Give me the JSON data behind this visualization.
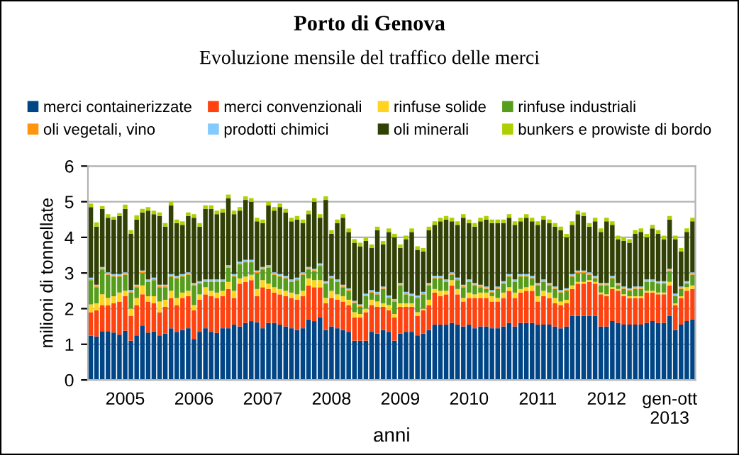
{
  "chart_data": {
    "type": "bar",
    "stacked": true,
    "title": "Porto di Genova",
    "subtitle": "Evoluzione mensile del traffico delle merci",
    "xlabel": "anni",
    "ylabel": "milioni di tonnellate",
    "categories": [
      null,
      null,
      null,
      null,
      null,
      null,
      "2005",
      null,
      null,
      null,
      null,
      null,
      null,
      null,
      null,
      null,
      null,
      null,
      "2006",
      null,
      null,
      null,
      null,
      null,
      null,
      null,
      null,
      null,
      null,
      null,
      "2007",
      null,
      null,
      null,
      null,
      null,
      null,
      null,
      null,
      null,
      null,
      null,
      "2008",
      null,
      null,
      null,
      null,
      null,
      null,
      null,
      null,
      null,
      null,
      null,
      "2009",
      null,
      null,
      null,
      null,
      null,
      null,
      null,
      null,
      null,
      null,
      null,
      "2010",
      null,
      null,
      null,
      null,
      null,
      null,
      null,
      null,
      null,
      null,
      null,
      "2011",
      null,
      null,
      null,
      null,
      null,
      null,
      null,
      null,
      null,
      null,
      null,
      "2012",
      null,
      null,
      null,
      null,
      null,
      null,
      null,
      null,
      null,
      null,
      "gen-ott\n2013",
      null,
      null,
      null,
      null
    ],
    "ylim": [
      0,
      6
    ],
    "yticks": [
      0,
      1,
      2,
      3,
      4,
      5,
      6
    ],
    "grid": "y",
    "legend": "top",
    "series": [
      {
        "name": "merci containerizzate",
        "color": "#004586",
        "values": [
          1.24,
          1.22,
          1.37,
          1.37,
          1.33,
          1.27,
          1.38,
          1.1,
          1.25,
          1.53,
          1.33,
          1.36,
          1.25,
          1.3,
          1.45,
          1.35,
          1.4,
          1.45,
          1.15,
          1.35,
          1.45,
          1.35,
          1.32,
          1.45,
          1.45,
          1.55,
          1.5,
          1.6,
          1.65,
          1.62,
          1.45,
          1.6,
          1.6,
          1.55,
          1.5,
          1.45,
          1.4,
          1.45,
          1.7,
          1.65,
          1.75,
          1.4,
          1.5,
          1.45,
          1.4,
          1.35,
          1.1,
          1.1,
          1.1,
          1.35,
          1.3,
          1.4,
          1.35,
          1.1,
          1.3,
          1.35,
          1.35,
          1.25,
          1.3,
          1.4,
          1.55,
          1.55,
          1.55,
          1.6,
          1.55,
          1.5,
          1.55,
          1.45,
          1.5,
          1.5,
          1.45,
          1.45,
          1.5,
          1.6,
          1.5,
          1.6,
          1.6,
          1.6,
          1.55,
          1.55,
          1.55,
          1.5,
          1.45,
          1.5,
          1.8,
          1.8,
          1.8,
          1.8,
          1.8,
          1.5,
          1.5,
          1.65,
          1.6,
          1.55,
          1.55,
          1.55,
          1.55,
          1.6,
          1.65,
          1.6,
          1.6,
          1.8,
          1.4,
          1.55,
          1.65,
          1.7
        ]
      },
      {
        "name": "merci convenzionali",
        "color": "#ff420e",
        "values": [
          0.66,
          0.73,
          0.73,
          0.73,
          0.82,
          0.93,
          0.97,
          0.7,
          0.85,
          0.87,
          0.87,
          0.79,
          0.65,
          0.75,
          0.85,
          0.75,
          0.9,
          0.9,
          0.8,
          0.9,
          0.95,
          1.0,
          0.98,
          0.9,
          1.1,
          0.75,
          1.2,
          1.15,
          1.15,
          0.73,
          1.15,
          0.95,
          0.85,
          0.85,
          0.85,
          0.85,
          0.85,
          0.9,
          0.95,
          0.95,
          0.85,
          0.75,
          0.8,
          0.8,
          0.8,
          0.75,
          0.65,
          0.65,
          0.8,
          0.75,
          0.75,
          0.65,
          0.6,
          0.65,
          0.75,
          0.7,
          0.7,
          0.55,
          0.65,
          0.7,
          0.9,
          0.8,
          0.85,
          1.05,
          0.85,
          0.7,
          0.75,
          0.85,
          0.8,
          0.8,
          0.75,
          0.75,
          0.8,
          0.9,
          0.8,
          0.85,
          0.9,
          0.9,
          0.65,
          0.8,
          0.75,
          0.65,
          0.65,
          0.65,
          0.75,
          0.9,
          0.9,
          0.95,
          0.9,
          0.9,
          0.85,
          0.9,
          0.9,
          0.8,
          0.75,
          0.75,
          0.75,
          0.85,
          0.8,
          0.8,
          0.8,
          0.85,
          0.7,
          0.75,
          0.85,
          0.85
        ]
      },
      {
        "name": "rinfuse solide",
        "color": "#ffd320",
        "values": [
          0.22,
          0.2,
          0.3,
          0.2,
          0.2,
          0.25,
          0.15,
          0.2,
          0.2,
          0.25,
          0.15,
          0.2,
          0.3,
          0.2,
          0.2,
          0.2,
          0.15,
          0.15,
          0.15,
          0.15,
          0.2,
          0.15,
          0.15,
          0.15,
          0.2,
          0.2,
          0.15,
          0.15,
          0.15,
          0.2,
          0.2,
          0.15,
          0.15,
          0.15,
          0.15,
          0.15,
          0.15,
          0.15,
          0.2,
          0.2,
          0.2,
          0.15,
          0.2,
          0.15,
          0.15,
          0.15,
          0.15,
          0.1,
          0.1,
          0.15,
          0.15,
          0.1,
          0.15,
          0.1,
          0.1,
          0.1,
          0.1,
          0.1,
          0.05,
          0.15,
          0.1,
          0.15,
          0.1,
          0.15,
          0.15,
          0.1,
          0.15,
          0.1,
          0.15,
          0.15,
          0.15,
          0.1,
          0.15,
          0.1,
          0.15,
          0.1,
          0.1,
          0.15,
          0.15,
          0.15,
          0.15,
          0.15,
          0.1,
          0.1,
          0.1,
          0.05,
          0.05,
          0.05,
          0.05,
          0.05,
          0.05,
          0.05,
          0.05,
          0.05,
          0.05,
          0.05,
          0.05,
          0.05,
          0.05,
          0.05,
          0.05,
          0.1,
          0.05,
          0.05,
          0.1,
          0.1
        ]
      },
      {
        "name": "rinfuse industriali",
        "color": "#579d1c",
        "values": [
          0.68,
          0.45,
          0.7,
          0.65,
          0.55,
          0.45,
          0.45,
          0.45,
          0.3,
          0.35,
          0.4,
          0.45,
          0.4,
          0.35,
          0.4,
          0.55,
          0.45,
          0.45,
          0.55,
          0.3,
          0.15,
          0.25,
          0.3,
          0.25,
          0.4,
          0.4,
          0.4,
          0.4,
          0.35,
          0.45,
          0.3,
          0.45,
          0.35,
          0.35,
          0.35,
          0.3,
          0.4,
          0.45,
          0.25,
          0.25,
          0.4,
          0.4,
          0.35,
          0.35,
          0.25,
          0.25,
          0.25,
          0.2,
          0.35,
          0.2,
          0.2,
          0.4,
          0.2,
          0.35,
          0.5,
          0.25,
          0.2,
          0.4,
          0.4,
          0.4,
          0.3,
          0.35,
          0.25,
          0.15,
          0.25,
          0.3,
          0.3,
          0.25,
          0.15,
          0.1,
          0.1,
          0.25,
          0.25,
          0.3,
          0.3,
          0.35,
          0.3,
          0.2,
          0.3,
          0.25,
          0.2,
          0.25,
          0.25,
          0.25,
          0.25,
          0.25,
          0.25,
          0.15,
          0.1,
          0.2,
          0.25,
          0.25,
          0.1,
          0.15,
          0.15,
          0.2,
          0.2,
          0.25,
          0.25,
          0.25,
          0.25,
          0.3,
          0.2,
          0.2,
          0.1,
          0.3
        ]
      },
      {
        "name": "oli vegetali, vino",
        "color": "#ff950e",
        "values": [
          0.03,
          0.03,
          0.03,
          0.03,
          0.03,
          0.03,
          0.03,
          0.03,
          0.03,
          0.03,
          0.03,
          0.03,
          0.03,
          0.03,
          0.03,
          0.03,
          0.03,
          0.03,
          0.03,
          0.03,
          0.03,
          0.03,
          0.03,
          0.03,
          0.03,
          0.03,
          0.03,
          0.03,
          0.03,
          0.03,
          0.03,
          0.03,
          0.03,
          0.03,
          0.03,
          0.03,
          0.03,
          0.03,
          0.03,
          0.03,
          0.03,
          0.03,
          0.03,
          0.03,
          0.03,
          0.03,
          0.03,
          0.03,
          0.03,
          0.03,
          0.03,
          0.03,
          0.03,
          0.03,
          0.03,
          0.03,
          0.03,
          0.03,
          0.03,
          0.03,
          0.03,
          0.03,
          0.03,
          0.03,
          0.03,
          0.03,
          0.03,
          0.03,
          0.03,
          0.03,
          0.03,
          0.03,
          0.03,
          0.03,
          0.03,
          0.03,
          0.03,
          0.03,
          0.03,
          0.03,
          0.03,
          0.03,
          0.03,
          0.03,
          0.03,
          0.03,
          0.03,
          0.03,
          0.03,
          0.03,
          0.03,
          0.03,
          0.03,
          0.03,
          0.03,
          0.03,
          0.03,
          0.03,
          0.03,
          0.03,
          0.03,
          0.03,
          0.03,
          0.03,
          0.03,
          0.03
        ]
      },
      {
        "name": "prodotti chimici",
        "color": "#83caff",
        "values": [
          0.04,
          0.04,
          0.04,
          0.04,
          0.04,
          0.04,
          0.04,
          0.04,
          0.04,
          0.04,
          0.04,
          0.04,
          0.04,
          0.04,
          0.04,
          0.04,
          0.04,
          0.04,
          0.04,
          0.04,
          0.04,
          0.04,
          0.04,
          0.04,
          0.04,
          0.04,
          0.04,
          0.04,
          0.04,
          0.04,
          0.04,
          0.04,
          0.04,
          0.04,
          0.04,
          0.04,
          0.04,
          0.04,
          0.04,
          0.04,
          0.04,
          0.04,
          0.04,
          0.04,
          0.04,
          0.04,
          0.04,
          0.04,
          0.04,
          0.04,
          0.04,
          0.04,
          0.04,
          0.04,
          0.04,
          0.04,
          0.04,
          0.04,
          0.04,
          0.04,
          0.04,
          0.04,
          0.04,
          0.04,
          0.04,
          0.04,
          0.04,
          0.04,
          0.04,
          0.04,
          0.04,
          0.04,
          0.04,
          0.04,
          0.04,
          0.04,
          0.04,
          0.04,
          0.04,
          0.04,
          0.04,
          0.04,
          0.04,
          0.04,
          0.04,
          0.04,
          0.04,
          0.04,
          0.04,
          0.04,
          0.04,
          0.04,
          0.04,
          0.04,
          0.04,
          0.04,
          0.04,
          0.04,
          0.04,
          0.04,
          0.04,
          0.04,
          0.04,
          0.04,
          0.04,
          0.04
        ]
      },
      {
        "name": "oli minerali",
        "color": "#314004",
        "values": [
          1.98,
          1.63,
          1.63,
          1.53,
          1.53,
          1.63,
          1.78,
          1.58,
          1.83,
          1.63,
          1.93,
          1.78,
          1.93,
          1.63,
          1.93,
          1.48,
          1.38,
          1.58,
          1.83,
          1.53,
          1.98,
          1.98,
          1.83,
          1.88,
          1.88,
          1.68,
          1.43,
          1.68,
          1.63,
          1.38,
          1.23,
          1.68,
          1.73,
          1.88,
          1.78,
          1.63,
          1.63,
          1.38,
          1.48,
          1.88,
          1.28,
          2.28,
          1.18,
          1.58,
          1.88,
          1.58,
          1.63,
          1.63,
          1.48,
          1.18,
          1.73,
          1.18,
          1.78,
          1.73,
          0.98,
          1.48,
          1.73,
          1.28,
          1.13,
          1.48,
          1.43,
          1.53,
          1.68,
          1.43,
          1.48,
          1.88,
          1.58,
          1.58,
          1.78,
          1.88,
          1.88,
          1.78,
          1.63,
          1.58,
          1.53,
          1.48,
          1.58,
          1.53,
          1.63,
          1.68,
          1.68,
          1.68,
          1.68,
          1.43,
          1.38,
          1.58,
          1.53,
          1.28,
          1.53,
          1.43,
          1.73,
          1.43,
          1.23,
          1.28,
          1.28,
          1.48,
          1.53,
          1.18,
          1.43,
          1.33,
          1.18,
          1.38,
          1.53,
          0.98,
          1.38,
          1.43
        ]
      },
      {
        "name": "bunkers e prowiste di bordo",
        "color": "#aecf00",
        "values": [
          0.1,
          0.12,
          0.08,
          0.1,
          0.08,
          0.08,
          0.12,
          0.1,
          0.12,
          0.1,
          0.1,
          0.1,
          0.1,
          0.1,
          0.1,
          0.1,
          0.1,
          0.1,
          0.1,
          0.1,
          0.1,
          0.1,
          0.1,
          0.1,
          0.1,
          0.1,
          0.1,
          0.1,
          0.1,
          0.1,
          0.1,
          0.1,
          0.1,
          0.1,
          0.1,
          0.1,
          0.1,
          0.1,
          0.1,
          0.1,
          0.1,
          0.1,
          0.1,
          0.1,
          0.1,
          0.1,
          0.1,
          0.1,
          0.1,
          0.1,
          0.1,
          0.1,
          0.1,
          0.1,
          0.1,
          0.1,
          0.1,
          0.1,
          0.1,
          0.1,
          0.1,
          0.1,
          0.1,
          0.1,
          0.1,
          0.1,
          0.1,
          0.1,
          0.1,
          0.1,
          0.1,
          0.1,
          0.1,
          0.1,
          0.1,
          0.1,
          0.1,
          0.1,
          0.1,
          0.1,
          0.1,
          0.1,
          0.1,
          0.1,
          0.1,
          0.1,
          0.1,
          0.1,
          0.1,
          0.1,
          0.1,
          0.1,
          0.1,
          0.1,
          0.1,
          0.1,
          0.1,
          0.1,
          0.1,
          0.1,
          0.1,
          0.1,
          0.1,
          0.1,
          0.1,
          0.1
        ]
      }
    ]
  }
}
